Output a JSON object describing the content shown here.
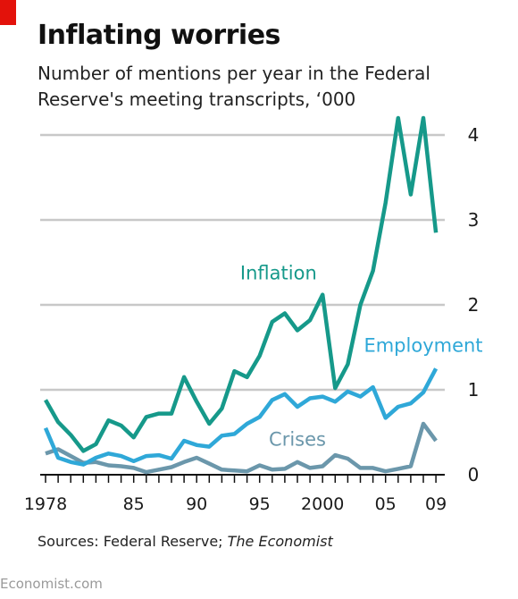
{
  "header": {
    "title": "Inflating worries",
    "subtitle": "Number of mentions per year in the Federal Reserve's meeting transcripts, ‘000"
  },
  "footer": {
    "source_prefix": "Sources: Federal Reserve; ",
    "source_italic": "The Economist",
    "credit": "Economist.com"
  },
  "colors": {
    "brand_red": "#e3120b",
    "inflation": "#16998a",
    "employment": "#2fa8d8",
    "crises": "#6b97ab",
    "grid": "#c8c8c8"
  },
  "chart_data": {
    "type": "line",
    "title": "Inflating worries",
    "subtitle": "Number of mentions per year in the Federal Reserve's meeting transcripts, ‘000",
    "x_ticks": [
      "1978",
      "85",
      "90",
      "95",
      "2000",
      "05",
      "09"
    ],
    "y_ticks": [
      "0",
      "1",
      "2",
      "3",
      "4"
    ],
    "ylim": [
      0,
      4.2
    ],
    "xlim": [
      1977.5,
      2009.5
    ],
    "y_axis_side": "right",
    "grid": true,
    "x": [
      1978,
      1979,
      1980,
      1981,
      1982,
      1983,
      1984,
      1985,
      1986,
      1987,
      1988,
      1989,
      1990,
      1991,
      1992,
      1993,
      1994,
      1995,
      1996,
      1997,
      1998,
      1999,
      2000,
      2001,
      2002,
      2003,
      2004,
      2005,
      2006,
      2007,
      2008,
      2009
    ],
    "series": [
      {
        "name": "Inflation",
        "color": "#16998a",
        "values": [
          0.88,
          0.62,
          0.47,
          0.28,
          0.36,
          0.64,
          0.58,
          0.44,
          0.68,
          0.72,
          0.72,
          1.15,
          0.86,
          0.6,
          0.78,
          1.22,
          1.15,
          1.4,
          1.8,
          1.9,
          1.7,
          1.82,
          2.12,
          1.02,
          1.3,
          2.0,
          2.4,
          3.2,
          4.2,
          3.3,
          4.2,
          2.85
        ]
      },
      {
        "name": "Employment",
        "color": "#2fa8d8",
        "values": [
          0.55,
          0.2,
          0.15,
          0.12,
          0.2,
          0.25,
          0.22,
          0.16,
          0.22,
          0.23,
          0.19,
          0.4,
          0.35,
          0.33,
          0.46,
          0.48,
          0.6,
          0.68,
          0.88,
          0.95,
          0.8,
          0.9,
          0.92,
          0.86,
          0.98,
          0.92,
          1.03,
          0.67,
          0.8,
          0.84,
          0.97,
          1.25
        ]
      },
      {
        "name": "Crises",
        "color": "#6b97ab",
        "values": [
          0.25,
          0.3,
          0.22,
          0.14,
          0.15,
          0.11,
          0.1,
          0.08,
          0.03,
          0.06,
          0.09,
          0.15,
          0.2,
          0.13,
          0.06,
          0.05,
          0.04,
          0.11,
          0.06,
          0.07,
          0.15,
          0.08,
          0.1,
          0.23,
          0.19,
          0.08,
          0.08,
          0.04,
          0.07,
          0.1,
          0.6,
          0.4
        ]
      }
    ]
  }
}
